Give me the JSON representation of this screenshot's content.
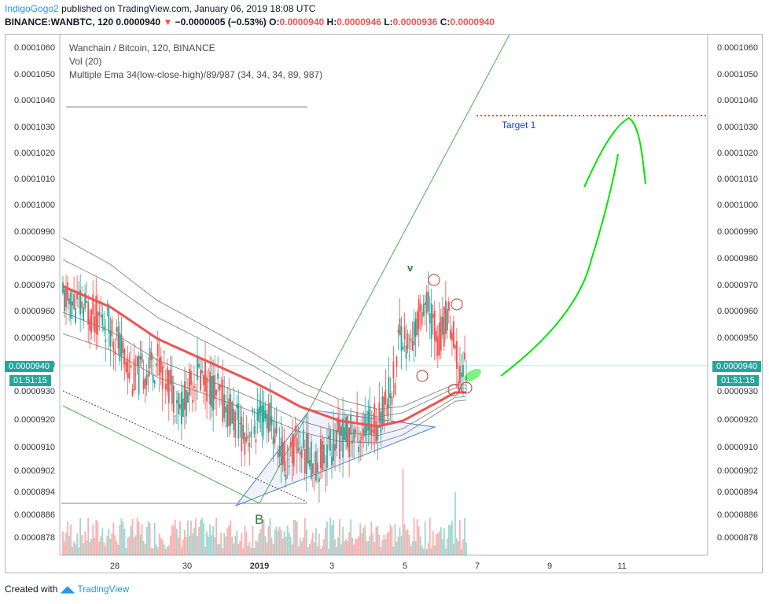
{
  "header": {
    "author": "IndigoGogo2",
    "published": "published on TradingView.com, January 06, 2019 18:08 UTC",
    "symbol": "BINANCE:WANBTC, 120",
    "last": "0.0000940",
    "change": "−0.0000005 (−0.53%)",
    "o_label": "O:",
    "o": "0.0000940",
    "h_label": "H:",
    "h": "0.0000946",
    "l_label": "L:",
    "l": "0.0000936",
    "c_label": "C:",
    "c": "0.0000940"
  },
  "legend": {
    "title": "Wanchain / Bitcoin, 120, BINANCE",
    "vol": "Vol (20)",
    "ema": "Multiple Ema 34(low-close-high)/89/987 (34, 34, 34, 89, 987)"
  },
  "price_tag": "0.0000940",
  "countdown": "01:51:15",
  "footer": {
    "created": "Created with",
    "brand": "TradingView"
  },
  "annotations": {
    "target": "Target 1",
    "wave_b": "B",
    "wave_v": "v"
  },
  "colors": {
    "up": "#26a69a",
    "down": "#ef5350",
    "ema34": "#ef5350",
    "target_line": "#ff0000",
    "projection": "#00e600"
  },
  "chart_data": {
    "type": "candlestick",
    "title": "Wanchain / Bitcoin, 120, BINANCE",
    "y_ticks": [
      "0.0001060",
      "0.0001050",
      "0.0001040",
      "0.0001030",
      "0.0001020",
      "0.0001010",
      "0.0001000",
      "0.0000990",
      "0.0000980",
      "0.0000970",
      "0.0000960",
      "0.0000950",
      "0.0000940",
      "0.0000930",
      "0.0000920",
      "0.0000910",
      "0.0000902",
      "0.0000894",
      "0.0000886",
      "0.0000878"
    ],
    "x_ticks": [
      "28",
      "30",
      "2019",
      "3",
      "5",
      "7",
      "9",
      "11"
    ],
    "x_bold": "2019",
    "ylim": [
      8.72e-05,
      0.0001064
    ],
    "price_series_approx": [
      [
        0,
        9.65e-05
      ],
      [
        12,
        9.62e-05
      ],
      [
        30,
        9.55e-05
      ],
      [
        45,
        9.35e-05
      ],
      [
        60,
        9.42e-05
      ],
      [
        75,
        9.25e-05
      ],
      [
        85,
        9.38e-05
      ],
      [
        100,
        9.28e-05
      ],
      [
        115,
        9.15e-05
      ],
      [
        130,
        9.22e-05
      ],
      [
        140,
        9.05e-05
      ],
      [
        148,
        9.12e-05
      ],
      [
        160,
        9.05e-05
      ],
      [
        175,
        9.14e-05
      ],
      [
        188,
        9.16e-05
      ],
      [
        199,
        9.2e-05
      ],
      [
        210,
        9.35e-05
      ],
      [
        213,
        9.55e-05
      ],
      [
        219,
        9.45e-05
      ],
      [
        228,
        9.65e-05
      ],
      [
        238,
        9.5e-05
      ],
      [
        244,
        9.6e-05
      ],
      [
        250,
        9.38e-05
      ],
      [
        255,
        9.4e-05
      ]
    ],
    "ema34_approx": [
      [
        0,
        9.7e-05
      ],
      [
        30,
        9.62e-05
      ],
      [
        60,
        9.5e-05
      ],
      [
        90,
        9.42e-05
      ],
      [
        120,
        9.34e-05
      ],
      [
        150,
        9.25e-05
      ],
      [
        175,
        9.2e-05
      ],
      [
        199,
        9.18e-05
      ],
      [
        215,
        9.2e-05
      ],
      [
        235,
        9.26e-05
      ],
      [
        248,
        9.3e-05
      ]
    ],
    "volume_max_index": 248,
    "target_1": 0.0001034,
    "last_close": 9.4e-05
  }
}
